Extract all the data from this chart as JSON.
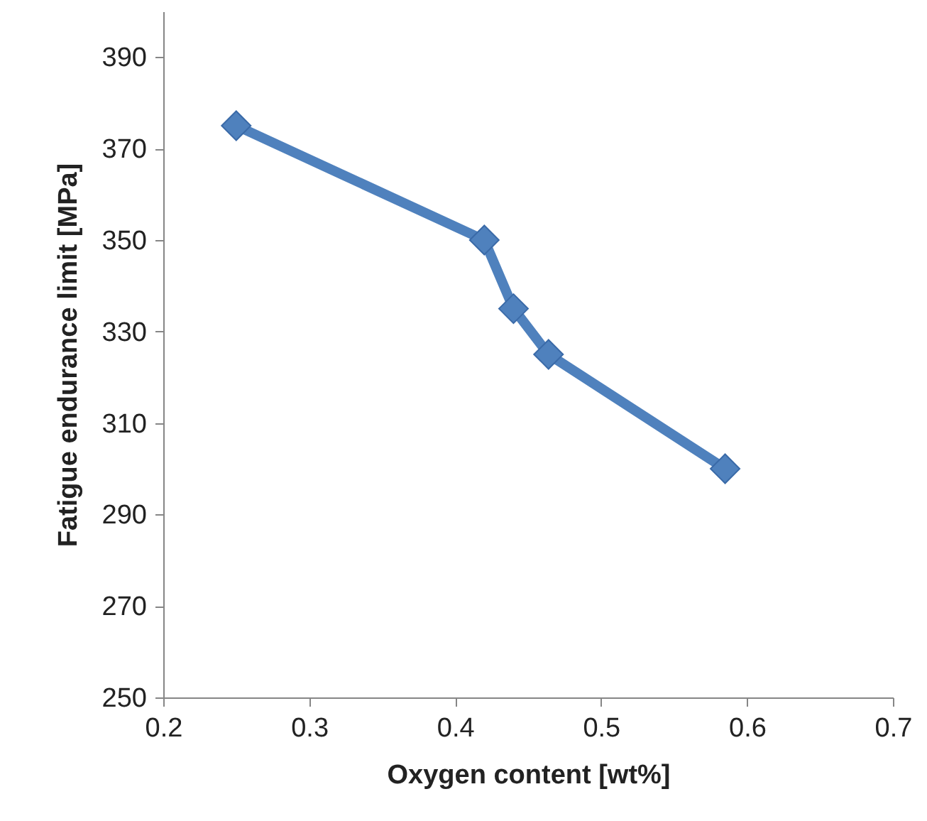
{
  "chart_data": {
    "type": "line",
    "xlabel": "Oxygen content [wt%]",
    "ylabel": "Fatigue endurance limit [MPa]",
    "x": [
      0.25,
      0.42,
      0.44,
      0.464,
      0.585
    ],
    "series": [
      {
        "color": "#4f81bd",
        "values": [
          375,
          350,
          335,
          325,
          300
        ]
      }
    ],
    "xlim": [
      0.2,
      0.7
    ],
    "xticks": [
      0.2,
      0.3,
      0.4,
      0.5,
      0.6,
      0.7
    ],
    "ylim": [
      250,
      400
    ],
    "yticks": [
      250,
      270,
      290,
      310,
      330,
      350,
      370,
      390
    ],
    "marker": "diamond",
    "line_style": "solid"
  }
}
